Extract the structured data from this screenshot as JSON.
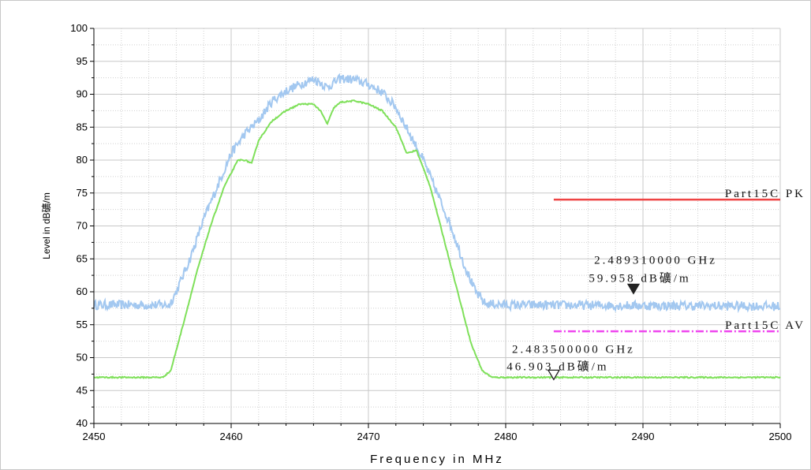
{
  "chart_data": {
    "type": "line",
    "xlabel": "Frequency in MHz",
    "ylabel": "Level in dB礦/m",
    "xlim": [
      2450,
      2500
    ],
    "ylim": [
      40,
      100
    ],
    "x_ticks": [
      2450,
      2460,
      2470,
      2480,
      2490,
      2500
    ],
    "y_ticks": [
      40,
      45,
      50,
      55,
      60,
      65,
      70,
      75,
      80,
      85,
      90,
      95,
      100
    ],
    "grid": true,
    "series": [
      {
        "color": "#a3c8f0",
        "x": [
          2450,
          2455.5,
          2456,
          2457,
          2458,
          2459,
          2460,
          2461,
          2462,
          2463,
          2464,
          2465,
          2466,
          2466.5,
          2467,
          2467.5,
          2468,
          2469,
          2470,
          2471,
          2472,
          2473,
          2474,
          2475,
          2476,
          2477,
          2477.8,
          2478.5,
          2480,
          2500
        ],
        "y": [
          58,
          58,
          60,
          65,
          71,
          76,
          81,
          84,
          86,
          89,
          90.5,
          91.5,
          92.3,
          91.8,
          91,
          91.8,
          92.4,
          92.2,
          91.5,
          90.3,
          88,
          84,
          80,
          75,
          70,
          64,
          60,
          58.2,
          58,
          57.8
        ],
        "noise": 0.7
      },
      {
        "color": "#7fe05a",
        "x": [
          2450,
          2455,
          2455.6,
          2456.5,
          2457.5,
          2458.5,
          2459.5,
          2460.5,
          2461,
          2461.5,
          2462,
          2463,
          2464,
          2465,
          2466,
          2466.5,
          2467,
          2467.5,
          2468,
          2469,
          2470,
          2471,
          2472,
          2472.8,
          2473.5,
          2474.5,
          2475.5,
          2476.5,
          2477.5,
          2478.3,
          2479,
          2500
        ],
        "y": [
          47,
          47,
          48,
          55,
          63,
          70,
          76,
          80,
          80,
          79.5,
          83,
          86,
          87.5,
          88.5,
          88.5,
          87.5,
          85.5,
          88,
          88.8,
          89,
          88.5,
          87.5,
          85,
          81,
          81.5,
          76,
          68,
          60,
          52,
          48,
          47,
          47
        ],
        "noise": 0.1
      }
    ],
    "limit_lines": [
      {
        "name": "Part15C PK",
        "value": 74,
        "x_start": 2483.5,
        "x_end": 2500,
        "color": "#ee4444",
        "style": "solid"
      },
      {
        "name": "Part15C AV",
        "value": 54,
        "x_start": 2483.5,
        "x_end": 2500,
        "color": "#ee44ee",
        "style": "dashdot"
      }
    ],
    "markers": [
      {
        "x": 2489.31,
        "y": 59.958,
        "freq_label": "2.489310000 GHz",
        "level_label": "59.958 dB礦/m",
        "filled": true
      },
      {
        "x": 2483.5,
        "y": 46.903,
        "freq_label": "2.483500000 GHz",
        "level_label": "46.903 dB礦/m",
        "filled": false
      }
    ]
  }
}
